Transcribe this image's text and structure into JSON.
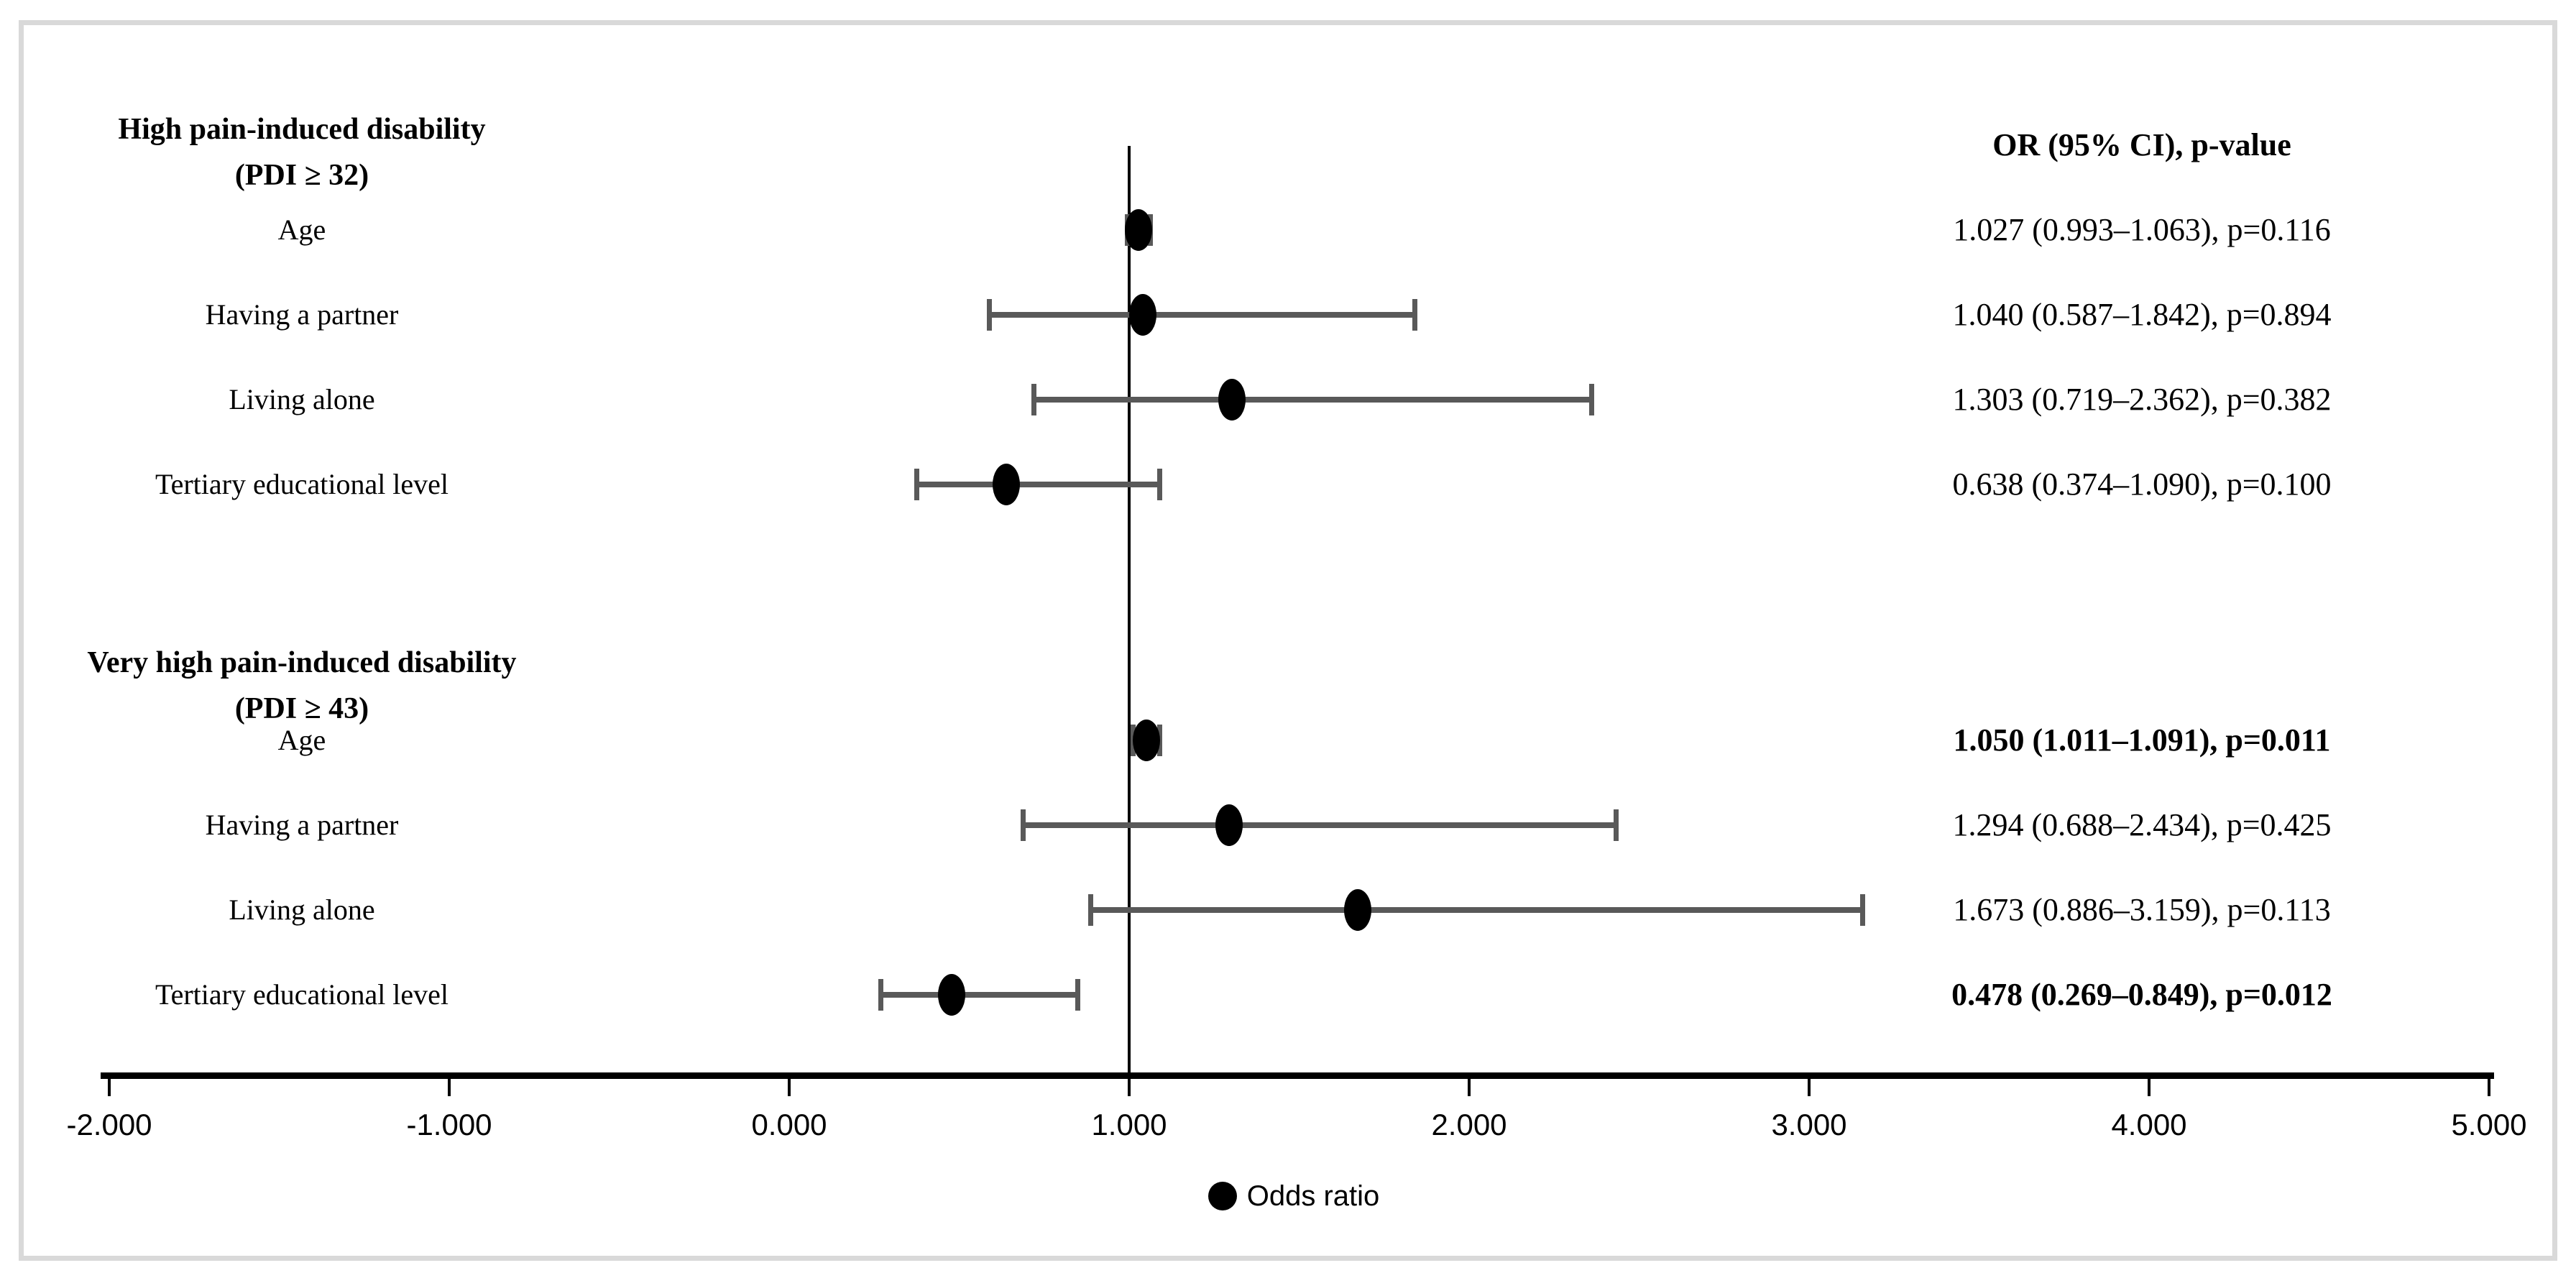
{
  "chart_data": {
    "type": "scatter",
    "subtype": "forest-plot",
    "or_column_header": "OR (95% CI), p-value",
    "legend": {
      "label": "Odds ratio",
      "marker": "filled-circle",
      "marker_color": "#000000"
    },
    "x_axis": {
      "min": -2.0,
      "max": 5.0,
      "reference_line_value": 1.0,
      "grid": false,
      "ticks": [
        {
          "label": "-2.000",
          "value": -2
        },
        {
          "label": "-1.000",
          "value": -1
        },
        {
          "label": "0.000",
          "value": 0
        },
        {
          "label": "1.000",
          "value": 1
        },
        {
          "label": "2.000",
          "value": 2
        },
        {
          "label": "3.000",
          "value": 3
        },
        {
          "label": "4.000",
          "value": 4
        },
        {
          "label": "5.000",
          "value": 5
        }
      ]
    },
    "colors": {
      "marker": "#000000",
      "error_bar": "#595959",
      "frame_border": "#d9d9d9",
      "text": "#000000"
    },
    "sections": [
      {
        "title_line1": "High pain-induced disability",
        "title_line2": "(PDI ≥ 32)",
        "rows": [
          {
            "label": "Age",
            "or": 1.027,
            "ci_low": 0.993,
            "ci_high": 1.063,
            "p": 0.116,
            "text": "1.027 (0.993–1.063), p=0.116",
            "bold": false
          },
          {
            "label": "Having a partner",
            "or": 1.04,
            "ci_low": 0.587,
            "ci_high": 1.842,
            "p": 0.894,
            "text": "1.040 (0.587–1.842), p=0.894",
            "bold": false
          },
          {
            "label": "Living alone",
            "or": 1.303,
            "ci_low": 0.719,
            "ci_high": 2.362,
            "p": 0.382,
            "text": "1.303 (0.719–2.362), p=0.382",
            "bold": false
          },
          {
            "label": "Tertiary educational level",
            "or": 0.638,
            "ci_low": 0.374,
            "ci_high": 1.09,
            "p": 0.1,
            "text": "0.638 (0.374–1.090), p=0.100",
            "bold": false
          }
        ]
      },
      {
        "title_line1": "Very high pain-induced disability",
        "title_line2": "(PDI ≥ 43)",
        "rows": [
          {
            "label": "Age",
            "or": 1.05,
            "ci_low": 1.011,
            "ci_high": 1.091,
            "p": 0.011,
            "text": "1.050 (1.011–1.091), p=0.011",
            "bold": true
          },
          {
            "label": "Having a partner",
            "or": 1.294,
            "ci_low": 0.688,
            "ci_high": 2.434,
            "p": 0.425,
            "text": "1.294 (0.688–2.434), p=0.425",
            "bold": false
          },
          {
            "label": "Living alone",
            "or": 1.673,
            "ci_low": 0.886,
            "ci_high": 3.159,
            "p": 0.113,
            "text": "1.673 (0.886–3.159), p=0.113",
            "bold": false
          },
          {
            "label": "Tertiary educational level",
            "or": 0.478,
            "ci_low": 0.269,
            "ci_high": 0.849,
            "p": 0.012,
            "text": "0.478 (0.269–0.849), p=0.012",
            "bold": true
          }
        ]
      }
    ]
  }
}
